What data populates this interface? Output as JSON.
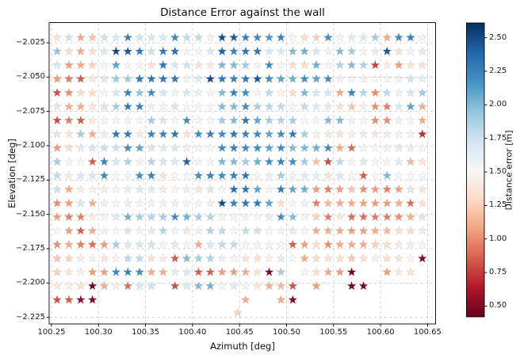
{
  "chart_data": {
    "type": "scatter",
    "marker": "star",
    "title": "Distance Error against the wall",
    "xlabel": "Azimuth [deg]",
    "ylabel": "Elevation [deg]",
    "grid": true,
    "grid_style": "dashed",
    "xlim": [
      100.2475,
      100.6585
    ],
    "ylim": [
      -2.2298,
      -2.0103
    ],
    "xticks": [
      100.25,
      100.3,
      100.35,
      100.4,
      100.45,
      100.5,
      100.55,
      100.6,
      100.65
    ],
    "xtick_labels": [
      "100.25",
      "100.30",
      "100.35",
      "100.40",
      "100.45",
      "100.50",
      "100.55",
      "100.60",
      "100.65"
    ],
    "yticks": [
      -2.025,
      -2.05,
      -2.075,
      -2.1,
      -2.125,
      -2.15,
      -2.175,
      -2.2,
      -2.225
    ],
    "ytick_labels": [
      "−2.025",
      "−2.050",
      "−2.075",
      "−2.100",
      "−2.125",
      "−2.150",
      "−2.175",
      "−2.200",
      "−2.225"
    ],
    "colormap": "RdBu",
    "colormap_colors": [
      "#67001f",
      "#b2182b",
      "#d6604d",
      "#f4a582",
      "#fddbc7",
      "#f7f7f7",
      "#d1e5f0",
      "#92c5de",
      "#4393c3",
      "#2166ac",
      "#053061"
    ],
    "colorbar": {
      "label": "Distance error [m]",
      "vmin": 0.42,
      "vmax": 2.61,
      "ticks": [
        0.5,
        0.75,
        1.0,
        1.25,
        1.5,
        1.75,
        2.0,
        2.25,
        2.5
      ],
      "tick_labels": [
        "0.50",
        "0.75",
        "1.00",
        "1.25",
        "1.50",
        "1.75",
        "2.00",
        "2.25",
        "2.50"
      ]
    },
    "azimuth_start": 100.256,
    "azimuth_step": 0.01253,
    "rows": [
      {
        "el": -2.0212,
        "values": [
          1.35,
          1.75,
          1.1,
          1.2,
          1.75,
          1.7,
          2.25,
          1.75,
          1.7,
          1.7,
          2.2,
          1.8,
          1.8,
          1.55,
          2.5,
          2.45,
          2.25,
          2.2,
          2.15,
          2.25,
          1.5,
          1.3,
          1.25,
          2.2,
          1.5,
          1.65,
          1.7,
          1.9,
          1.1,
          2.2,
          2.25,
          1.55
        ]
      },
      {
        "el": -2.0313,
        "values": [
          1.95,
          1.3,
          1.1,
          1.3,
          1.7,
          2.5,
          2.45,
          2.3,
          1.75,
          2.3,
          2.35,
          1.55,
          1.5,
          1.7,
          2.4,
          2.25,
          2.3,
          2.3,
          1.7,
          1.7,
          2.0,
          2.05,
          1.7,
          1.55,
          2.0,
          1.9,
          1.5,
          1.65,
          2.45,
          1.35,
          1.5,
          1.65
        ]
      },
      {
        "el": -2.0413,
        "values": [
          1.7,
          1.05,
          1.1,
          1.25,
          1.5,
          2.1,
          1.5,
          1.5,
          1.35,
          2.3,
          1.7,
          1.75,
          1.35,
          1.4,
          2.0,
          2.0,
          1.9,
          1.5,
          2.2,
          1.5,
          1.3,
          1.3,
          2.05,
          1.5,
          1.85,
          2.0,
          1.85,
          0.78,
          1.45,
          1.05,
          1.35,
          1.35
        ]
      },
      {
        "el": -2.0514,
        "values": [
          1.05,
          0.95,
          0.85,
          1.4,
          1.65,
          1.9,
          1.9,
          2.3,
          2.3,
          2.3,
          2.3,
          1.5,
          1.7,
          2.5,
          2.3,
          2.25,
          2.3,
          2.45,
          2.2,
          2.1,
          2.05,
          2.2,
          2.1,
          2.2,
          1.45,
          1.5,
          1.45,
          1.5,
          1.5,
          1.55,
          1.75,
          1.6
        ]
      },
      {
        "el": -2.0615,
        "values": [
          0.8,
          1.0,
          1.3,
          1.3,
          1.5,
          1.7,
          2.25,
          1.95,
          2.2,
          1.7,
          1.55,
          1.7,
          1.6,
          1.5,
          2.0,
          2.25,
          2.2,
          1.55,
          1.8,
          1.5,
          1.3,
          2.0,
          1.7,
          1.7,
          1.1,
          2.25,
          1.85,
          1.0,
          1.8,
          1.6,
          1.7,
          1.9
        ]
      },
      {
        "el": -2.0715,
        "values": [
          1.7,
          1.1,
          1.1,
          1.35,
          1.7,
          1.9,
          2.3,
          2.25,
          1.6,
          1.5,
          1.7,
          1.5,
          1.5,
          1.5,
          2.0,
          2.0,
          2.2,
          1.9,
          1.85,
          1.8,
          1.5,
          1.8,
          1.7,
          1.65,
          1.35,
          1.2,
          1.45,
          1.0,
          0.95,
          1.7,
          2.1,
          1.1
        ]
      },
      {
        "el": -2.0816,
        "values": [
          0.8,
          0.95,
          0.85,
          1.4,
          1.5,
          1.5,
          1.55,
          1.5,
          1.9,
          1.7,
          1.5,
          2.2,
          1.5,
          1.5,
          1.9,
          2.0,
          2.3,
          2.1,
          1.9,
          1.85,
          1.9,
          1.5,
          1.5,
          2.0,
          2.0,
          1.55,
          1.5,
          1.0,
          1.0,
          1.45,
          1.5,
          1.1
        ]
      },
      {
        "el": -2.0916,
        "values": [
          1.7,
          1.35,
          1.9,
          1.1,
          1.6,
          2.3,
          2.3,
          1.4,
          2.25,
          2.25,
          2.3,
          1.35,
          2.2,
          2.25,
          2.2,
          2.3,
          2.25,
          2.2,
          2.1,
          2.2,
          2.3,
          1.9,
          1.45,
          1.4,
          1.35,
          1.45,
          1.4,
          1.35,
          1.4,
          1.45,
          1.55,
          0.7
        ]
      },
      {
        "el": -2.1017,
        "values": [
          1.05,
          1.35,
          1.65,
          1.7,
          1.75,
          1.75,
          2.2,
          2.1,
          1.7,
          1.65,
          1.7,
          1.45,
          1.5,
          1.5,
          2.2,
          2.25,
          2.2,
          2.2,
          2.1,
          2.2,
          2.0,
          2.0,
          2.05,
          2.2,
          1.1,
          0.9,
          1.5,
          1.5,
          1.6,
          1.65,
          1.6,
          1.5
        ]
      },
      {
        "el": -2.1117,
        "values": [
          1.9,
          1.55,
          1.5,
          0.85,
          2.25,
          1.7,
          1.85,
          1.55,
          1.85,
          1.7,
          1.7,
          2.4,
          1.55,
          1.5,
          2.0,
          2.0,
          1.9,
          2.05,
          2.2,
          2.25,
          2.2,
          1.9,
          1.2,
          0.8,
          1.8,
          1.5,
          1.65,
          1.5,
          1.55,
          1.65,
          1.15,
          1.35
        ]
      },
      {
        "el": -2.1218,
        "values": [
          1.8,
          1.4,
          1.7,
          1.7,
          2.2,
          1.5,
          1.55,
          2.2,
          2.25,
          1.35,
          1.5,
          1.5,
          2.2,
          2.25,
          2.2,
          2.25,
          2.3,
          1.55,
          1.6,
          1.9,
          1.55,
          1.65,
          1.65,
          1.35,
          1.7,
          1.55,
          0.85,
          1.5,
          2.0,
          1.5,
          1.5,
          1.5
        ]
      },
      {
        "el": -2.1318,
        "values": [
          1.75,
          1.1,
          1.45,
          1.55,
          1.45,
          1.5,
          1.6,
          1.65,
          1.65,
          1.4,
          1.5,
          1.45,
          1.4,
          1.7,
          1.5,
          2.35,
          2.3,
          2.1,
          1.5,
          2.3,
          2.1,
          2.05,
          1.05,
          0.95,
          1.05,
          1.2,
          1.0,
          1.05,
          0.95,
          1.05,
          1.65,
          1.35
        ]
      },
      {
        "el": -2.1419,
        "values": [
          1.0,
          1.05,
          1.7,
          1.1,
          1.45,
          1.5,
          1.6,
          1.55,
          1.5,
          1.55,
          1.6,
          1.5,
          1.5,
          1.6,
          2.5,
          2.25,
          2.3,
          2.3,
          2.1,
          1.3,
          1.5,
          1.6,
          0.95,
          1.15,
          1.1,
          1.1,
          1.05,
          1.05,
          1.05,
          1.1,
          0.9,
          1.32
        ]
      },
      {
        "el": -2.1519,
        "values": [
          1.05,
          0.95,
          0.95,
          1.45,
          1.5,
          1.65,
          2.05,
          1.9,
          1.85,
          1.9,
          2.2,
          2.05,
          1.9,
          1.85,
          1.5,
          1.5,
          1.55,
          1.5,
          1.6,
          2.2,
          2.0,
          1.5,
          1.25,
          0.95,
          1.4,
          0.9,
          0.9,
          0.95,
          0.95,
          1.0,
          1.1,
          1.7
        ]
      },
      {
        "el": -2.162,
        "values": [
          1.5,
          1.05,
          0.85,
          1.1,
          1.45,
          1.5,
          1.7,
          1.55,
          1.65,
          1.85,
          1.55,
          1.35,
          1.45,
          1.85,
          1.8,
          1.5,
          1.8,
          1.75,
          1.5,
          1.55,
          1.65,
          1.5,
          1.1,
          1.1,
          1.1,
          1.05,
          1.05,
          1.1,
          1.15,
          1.3,
          1.3,
          1.6
        ]
      },
      {
        "el": -2.172,
        "values": [
          1.0,
          1.1,
          0.95,
          0.9,
          1.05,
          1.9,
          1.7,
          1.7,
          1.75,
          1.55,
          1.65,
          1.5,
          1.1,
          1.7,
          1.8,
          1.8,
          1.55,
          1.5,
          1.55,
          1.5,
          0.85,
          1.05,
          1.3,
          1.0,
          1.1,
          1.1,
          1.1,
          1.25,
          1.3,
          1.4,
          1.6,
          1.55
        ]
      },
      {
        "el": -2.1821,
        "values": [
          1.2,
          1.25,
          1.4,
          1.45,
          1.35,
          1.45,
          1.8,
          1.8,
          1.35,
          1.4,
          0.85,
          2.0,
          1.9,
          1.85,
          1.6,
          1.5,
          1.35,
          1.3,
          1.45,
          1.65,
          1.5,
          1.1,
          1.3,
          1.35,
          1.3,
          1.2,
          1.3,
          1.45,
          1.3,
          1.35,
          1.5,
          0.5
        ]
      },
      {
        "el": -2.1921,
        "values": [
          1.25,
          1.35,
          1.45,
          1.05,
          1.05,
          2.2,
          2.25,
          2.2,
          1.1,
          1.1,
          1.65,
          1.7,
          0.85,
          0.85,
          1.05,
          1.05,
          1.1,
          1.35,
          0.5,
          1.9,
          null,
          1.5,
          1.3,
          1.1,
          1.05,
          0.45,
          null,
          null,
          1.05,
          1.4,
          1.35,
          null
        ]
      },
      {
        "el": -2.2022,
        "values": [
          1.4,
          1.45,
          1.35,
          0.45,
          1.1,
          1.45,
          0.9,
          1.7,
          1.75,
          null,
          0.8,
          1.7,
          2.0,
          2.05,
          1.5,
          1.65,
          1.5,
          1.35,
          1.1,
          1.15,
          0.8,
          null,
          1.05,
          null,
          null,
          0.45,
          0.45,
          null,
          null,
          null,
          null,
          null
        ]
      },
      {
        "el": -2.2123,
        "values": [
          0.8,
          0.85,
          0.55,
          0.5,
          null,
          null,
          null,
          null,
          null,
          null,
          null,
          null,
          null,
          null,
          null,
          null,
          1.1,
          null,
          null,
          1.1,
          0.5,
          null,
          null,
          null,
          null,
          null,
          null,
          null,
          null,
          null,
          null,
          null
        ]
      }
    ],
    "extra_points": [
      {
        "az": 100.448,
        "el": -2.2216,
        "value": 1.25
      }
    ]
  }
}
